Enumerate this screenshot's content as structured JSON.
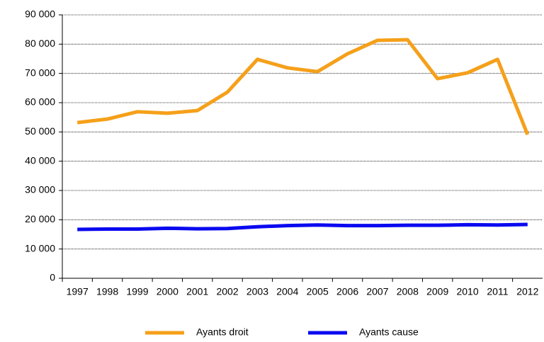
{
  "chart_data": {
    "type": "line",
    "categories": [
      "1997",
      "1998",
      "1999",
      "2000",
      "2001",
      "2002",
      "2003",
      "2004",
      "2005",
      "2006",
      "2007",
      "2008",
      "2009",
      "2010",
      "2011",
      "2012"
    ],
    "series": [
      {
        "name": "Ayants droit",
        "color": "#f5a01a",
        "values": [
          53200,
          54400,
          56900,
          56400,
          57300,
          63600,
          74800,
          71900,
          70600,
          76700,
          81300,
          81500,
          68200,
          70200,
          74800,
          49100
        ]
      },
      {
        "name": "Ayants cause",
        "color": "#0a0af0",
        "values": [
          16700,
          16800,
          16800,
          17100,
          16900,
          17000,
          17600,
          18000,
          18200,
          18000,
          18000,
          18100,
          18100,
          18300,
          18200,
          18400
        ]
      }
    ],
    "ylim": [
      0,
      90000
    ],
    "yticks": [
      0,
      {
        "value": 10000,
        "label": "10 000"
      },
      {
        "value": 20000,
        "label": "20 000"
      },
      {
        "value": 30000,
        "label": "30 000"
      },
      {
        "value": 40000,
        "label": "40 000"
      },
      {
        "value": 50000,
        "label": "50 000"
      },
      {
        "value": 60000,
        "label": "60 000"
      },
      {
        "value": 70000,
        "label": "70 000"
      },
      {
        "value": 80000,
        "label": "80 000"
      },
      {
        "value": 90000,
        "label": "90 000"
      }
    ],
    "grid": true,
    "legend": "bottom"
  }
}
